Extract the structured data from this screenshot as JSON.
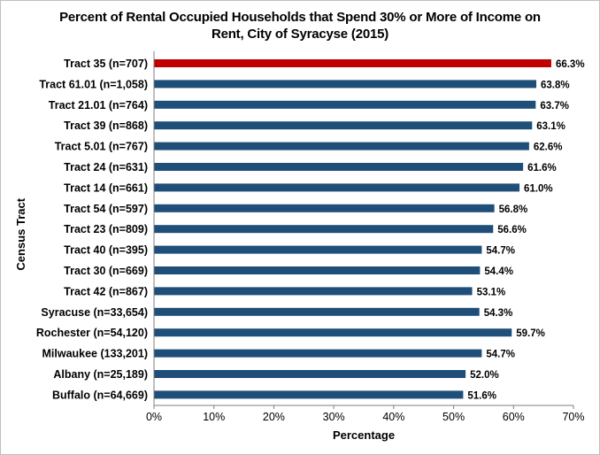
{
  "chart_data": {
    "type": "bar",
    "orientation": "horizontal",
    "title_lines": [
      "Percent of Rental Occupied Households that Spend 30% or More of Income on",
      "Rent, City of Syracyse (2015)"
    ],
    "xlabel": "Percentage",
    "ylabel": "Census Tract",
    "xlim": [
      0,
      70
    ],
    "x_ticks": [
      "0%",
      "10%",
      "20%",
      "30%",
      "40%",
      "50%",
      "60%",
      "70%"
    ],
    "grid": false,
    "legend": "none",
    "colors": {
      "default": "#1f4e79",
      "highlight": "#c00000"
    },
    "categories": [
      "Tract 35 (n=707)",
      "Tract 61.01 (n=1,058)",
      "Tract 21.01 (n=764)",
      "Tract 39 (n=868)",
      "Tract 5.01 (n=767)",
      "Tract 24 (n=631)",
      "Tract 14 (n=661)",
      "Tract 54 (n=597)",
      "Tract 23 (n=809)",
      "Tract 40 (n=395)",
      "Tract 30 (n=669)",
      "Tract 42 (n=867)",
      "Syracuse (n=33,654)",
      "Rochester (n=54,120)",
      "Milwaukee (133,201)",
      "Albany  (n=25,189)",
      "Buffalo (n=64,669)"
    ],
    "values": [
      66.3,
      63.8,
      63.7,
      63.1,
      62.6,
      61.6,
      61.0,
      56.8,
      56.6,
      54.7,
      54.4,
      53.1,
      54.3,
      59.7,
      54.7,
      52.0,
      51.6
    ],
    "data_labels": [
      "66.3%",
      "63.8%",
      "63.7%",
      "63.1%",
      "62.6%",
      "61.6%",
      "61.0%",
      "56.8%",
      "56.6%",
      "54.7%",
      "54.4%",
      "53.1%",
      "54.3%",
      "59.7%",
      "54.7%",
      "52.0%",
      "51.6%"
    ],
    "highlight_index": 0
  }
}
